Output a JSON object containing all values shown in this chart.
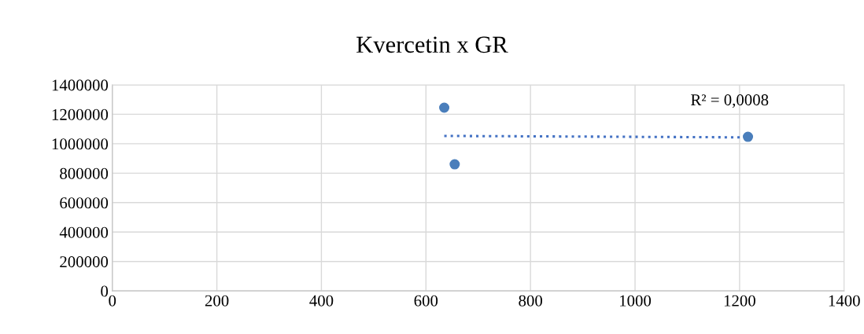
{
  "chart_data": {
    "type": "scatter",
    "title": "Kvercetin x GR",
    "xlim": [
      0,
      1400
    ],
    "xticks": [
      0,
      200,
      400,
      600,
      800,
      1000,
      1200,
      1400
    ],
    "ylim": [
      0,
      1400000
    ],
    "yticks": [
      0,
      200000,
      400000,
      600000,
      800000,
      1000000,
      1200000,
      1400000
    ],
    "grid": true,
    "annotations": [
      "R² = 0,0008"
    ],
    "series": [
      {
        "marker": "circle",
        "color": "#4a7ebb",
        "x": [
          635,
          655,
          1216
        ],
        "values": [
          1245000,
          860000,
          1047000
        ]
      },
      {
        "type": "line",
        "color": "#4472c4",
        "line_style": "dotted",
        "marker": "none",
        "x": [
          635,
          1216
        ],
        "values": [
          1053000,
          1043000
        ]
      }
    ]
  }
}
